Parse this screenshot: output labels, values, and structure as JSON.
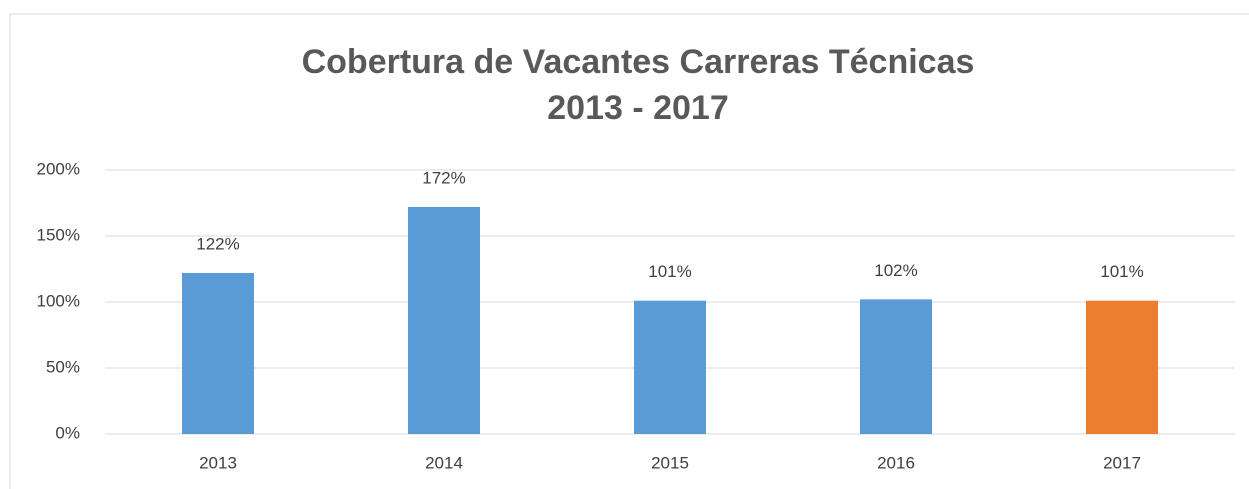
{
  "chart_data": {
    "type": "bar",
    "title": [
      "Cobertura de Vacantes Carreras Técnicas",
      "2013 - 2017"
    ],
    "categories": [
      "2013",
      "2014",
      "2015",
      "2016",
      "2017"
    ],
    "values": [
      122,
      172,
      101,
      102,
      101
    ],
    "value_labels": [
      "122%",
      "172%",
      "101%",
      "102%",
      "101%"
    ],
    "colors": [
      "#5b9bd5",
      "#5b9bd5",
      "#5b9bd5",
      "#5b9bd5",
      "#ed7d31"
    ],
    "ylim": [
      0,
      200
    ],
    "yticks": [
      {
        "value": 0,
        "label": "0%"
      },
      {
        "value": 50,
        "label": "50%"
      },
      {
        "value": 100,
        "label": "100%"
      },
      {
        "value": 150,
        "label": "150%"
      },
      {
        "value": 200,
        "label": "200%"
      }
    ],
    "grid": true
  }
}
